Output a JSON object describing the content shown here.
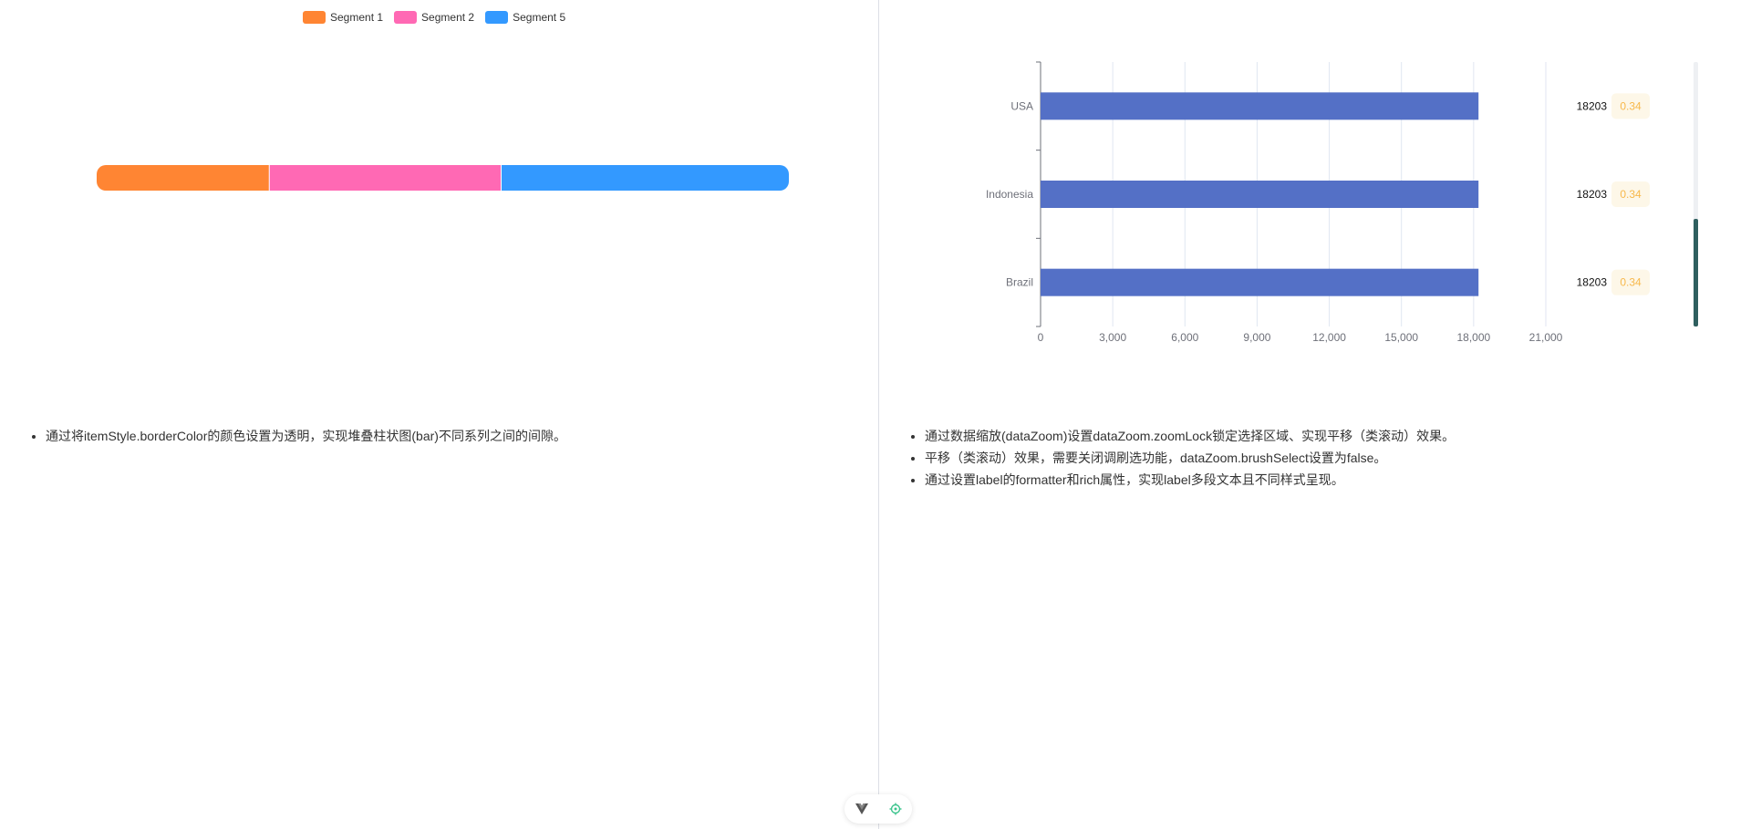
{
  "left": {
    "legend": [
      {
        "name": "Segment 1",
        "color": "#ff8533"
      },
      {
        "name": "Segment 2",
        "color": "#ff69b4"
      },
      {
        "name": "Segment 5",
        "color": "#3399ff"
      }
    ],
    "notes": [
      "通过将itemStyle.borderColor的颜色设置为透明，实现堆叠柱状图(bar)不同系列之间的间隙。"
    ]
  },
  "right": {
    "notes": [
      "通过数据缩放(dataZoom)设置dataZoom.zoomLock锁定选择区域、实现平移（类滚动）效果。",
      "平移（类滚动）效果，需要关闭调刷选功能，dataZoom.brushSelect设置为false。",
      "通过设置label的formatter和rich属性，实现label多段文本且不同样式呈现。"
    ]
  },
  "chart_data": [
    {
      "type": "bar",
      "orientation": "horizontal",
      "stacked": true,
      "series": [
        {
          "name": "Segment 1",
          "values": [
            25
          ],
          "color": "#ff8533"
        },
        {
          "name": "Segment 2",
          "values": [
            33.5
          ],
          "color": "#ff69b4"
        },
        {
          "name": "Segment 5",
          "values": [
            41.5
          ],
          "color": "#3399ff"
        }
      ],
      "legend_position": "top-center",
      "grid": false
    },
    {
      "type": "bar",
      "orientation": "horizontal",
      "categories": [
        "USA",
        "Indonesia",
        "Brazil"
      ],
      "series": [
        {
          "values": [
            18203,
            18203,
            18203
          ],
          "color": "#5470c6"
        }
      ],
      "labels": [
        {
          "value": "18203",
          "ratio": "0.34"
        },
        {
          "value": "18203",
          "ratio": "0.34"
        },
        {
          "value": "18203",
          "ratio": "0.34"
        }
      ],
      "xlim": [
        0,
        21000
      ],
      "xticks": [
        "0",
        "3,000",
        "6,000",
        "9,000",
        "12,000",
        "15,000",
        "18,000",
        "21,000"
      ],
      "grid": true,
      "ratio_color": "#f7b84b",
      "dataZoom": {
        "orientation": "vertical",
        "position": "right"
      }
    }
  ]
}
